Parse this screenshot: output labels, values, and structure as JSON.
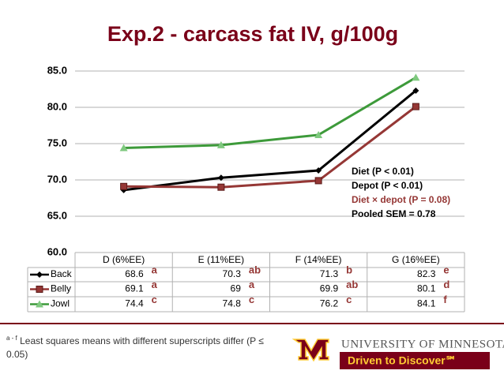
{
  "chart_data": {
    "type": "line",
    "title": "Exp.2 - carcass fat IV, g/100g",
    "categories": [
      "D (6%EE)",
      "E (11%EE)",
      "F (14%EE)",
      "G (16%EE)"
    ],
    "series": [
      {
        "name": "Back",
        "color": "#000000",
        "marker": "diamond",
        "values": [
          68.6,
          70.3,
          71.3,
          82.3
        ],
        "superscripts": [
          "a",
          "ab",
          "b",
          "e"
        ]
      },
      {
        "name": "Belly",
        "color": "#953735",
        "marker": "square",
        "values": [
          69.1,
          69.0,
          69.9,
          80.1
        ],
        "superscripts": [
          "a",
          "a",
          "ab",
          "d"
        ]
      },
      {
        "name": "Jowl",
        "color": "#3d9a3a",
        "marker": "triangle",
        "values": [
          74.4,
          74.8,
          76.2,
          84.1
        ],
        "superscripts": [
          "c",
          "c",
          "c",
          "f"
        ]
      }
    ],
    "ylim": [
      60,
      85
    ],
    "yticks": [
      {
        "value": 60,
        "label": "60.0"
      },
      {
        "value": 65,
        "label": "65.0"
      },
      {
        "value": 70,
        "label": "70.0"
      },
      {
        "value": 75,
        "label": "75.0"
      },
      {
        "value": 80,
        "label": "80.0"
      },
      {
        "value": 85,
        "label": "85.0"
      }
    ],
    "grid": true,
    "annotations": [
      "Diet (P < 0.01)",
      "Depot (P < 0.01)",
      "Diet × depot (P = 0.08)",
      "Pooled SEM = 0.78"
    ]
  },
  "footnote": {
    "superscript": "a - f",
    "text": "Least squares means with different superscripts differ (P ≤ 0.05)"
  },
  "logo": {
    "name": "UNIVERSITY OF MINNESOTA",
    "tagline": "Driven to Discover℠"
  }
}
